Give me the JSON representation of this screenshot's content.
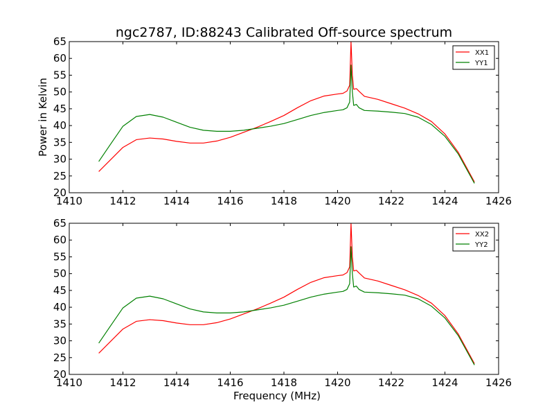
{
  "figure": {
    "title": "ngc2787, ID:88243 Calibrated Off-source spectrum"
  },
  "chart_data": [
    {
      "type": "line",
      "title": "ngc2787, ID:88243 Calibrated Off-source spectrum",
      "xlabel": "",
      "ylabel": "Power in Kelvin",
      "xlim": [
        1410,
        1426
      ],
      "ylim": [
        20,
        65
      ],
      "xticks": [
        1410,
        1412,
        1414,
        1416,
        1418,
        1420,
        1422,
        1424,
        1426
      ],
      "yticks": [
        20,
        25,
        30,
        35,
        40,
        45,
        50,
        55,
        60,
        65
      ],
      "grid": false,
      "legend_position": "top-right",
      "series": [
        {
          "name": "XX1",
          "color": "#ff0000",
          "x": [
            1411.1,
            1411.5,
            1412.0,
            1412.5,
            1413.0,
            1413.5,
            1414.0,
            1414.5,
            1415.0,
            1415.5,
            1416.0,
            1416.5,
            1417.0,
            1417.5,
            1418.0,
            1418.5,
            1419.0,
            1419.5,
            1420.0,
            1420.2,
            1420.35,
            1420.45,
            1420.5,
            1420.55,
            1420.6,
            1420.7,
            1420.8,
            1421.0,
            1421.5,
            1422.0,
            1422.5,
            1423.0,
            1423.5,
            1424.0,
            1424.5,
            1425.1
          ],
          "y": [
            26.3,
            29.5,
            33.5,
            35.8,
            36.3,
            36.0,
            35.3,
            34.8,
            34.8,
            35.4,
            36.5,
            38.0,
            39.5,
            41.2,
            43.0,
            45.3,
            47.4,
            48.8,
            49.4,
            49.6,
            50.3,
            52.0,
            65.0,
            55.0,
            50.8,
            51.0,
            50.2,
            48.7,
            47.8,
            46.5,
            45.2,
            43.5,
            41.2,
            37.5,
            32.0,
            23.2
          ]
        },
        {
          "name": "YY1",
          "color": "#008000",
          "x": [
            1411.1,
            1411.5,
            1412.0,
            1412.5,
            1413.0,
            1413.5,
            1414.0,
            1414.5,
            1415.0,
            1415.5,
            1416.0,
            1416.5,
            1417.0,
            1417.5,
            1418.0,
            1418.5,
            1419.0,
            1419.5,
            1420.0,
            1420.2,
            1420.35,
            1420.45,
            1420.5,
            1420.55,
            1420.6,
            1420.7,
            1420.8,
            1421.0,
            1421.5,
            1422.0,
            1422.5,
            1423.0,
            1423.5,
            1424.0,
            1424.5,
            1425.1
          ],
          "y": [
            29.3,
            34.0,
            39.8,
            42.7,
            43.3,
            42.5,
            41.0,
            39.5,
            38.6,
            38.3,
            38.3,
            38.6,
            39.2,
            39.8,
            40.6,
            41.8,
            43.0,
            43.9,
            44.5,
            44.7,
            45.3,
            47.0,
            58.0,
            50.0,
            46.0,
            46.3,
            45.3,
            44.5,
            44.3,
            44.0,
            43.6,
            42.5,
            40.3,
            36.8,
            31.5,
            22.8
          ]
        }
      ]
    },
    {
      "type": "line",
      "title": "",
      "xlabel": "Frequency (MHz)",
      "ylabel": "",
      "xlim": [
        1410,
        1426
      ],
      "ylim": [
        20,
        65
      ],
      "xticks": [
        1410,
        1412,
        1414,
        1416,
        1418,
        1420,
        1422,
        1424,
        1426
      ],
      "yticks": [
        20,
        25,
        30,
        35,
        40,
        45,
        50,
        55,
        60,
        65
      ],
      "grid": false,
      "legend_position": "top-right",
      "series": [
        {
          "name": "XX2",
          "color": "#ff0000",
          "x": [
            1411.1,
            1411.5,
            1412.0,
            1412.5,
            1413.0,
            1413.5,
            1414.0,
            1414.5,
            1415.0,
            1415.5,
            1416.0,
            1416.5,
            1417.0,
            1417.5,
            1418.0,
            1418.5,
            1419.0,
            1419.5,
            1420.0,
            1420.2,
            1420.35,
            1420.45,
            1420.5,
            1420.55,
            1420.6,
            1420.7,
            1420.8,
            1421.0,
            1421.5,
            1422.0,
            1422.5,
            1423.0,
            1423.5,
            1424.0,
            1424.5,
            1425.1
          ],
          "y": [
            26.3,
            29.5,
            33.5,
            35.8,
            36.3,
            36.0,
            35.3,
            34.8,
            34.8,
            35.4,
            36.5,
            38.0,
            39.5,
            41.2,
            43.0,
            45.3,
            47.4,
            48.8,
            49.4,
            49.6,
            50.3,
            52.0,
            65.0,
            55.0,
            50.8,
            51.0,
            50.2,
            48.7,
            47.8,
            46.5,
            45.2,
            43.5,
            41.2,
            37.5,
            32.0,
            23.2
          ]
        },
        {
          "name": "YY2",
          "color": "#008000",
          "x": [
            1411.1,
            1411.5,
            1412.0,
            1412.5,
            1413.0,
            1413.5,
            1414.0,
            1414.5,
            1415.0,
            1415.5,
            1416.0,
            1416.5,
            1417.0,
            1417.5,
            1418.0,
            1418.5,
            1419.0,
            1419.5,
            1420.0,
            1420.2,
            1420.35,
            1420.45,
            1420.5,
            1420.55,
            1420.6,
            1420.7,
            1420.8,
            1421.0,
            1421.5,
            1422.0,
            1422.5,
            1423.0,
            1423.5,
            1424.0,
            1424.5,
            1425.1
          ],
          "y": [
            29.3,
            34.0,
            39.8,
            42.7,
            43.3,
            42.5,
            41.0,
            39.5,
            38.6,
            38.3,
            38.3,
            38.6,
            39.2,
            39.8,
            40.6,
            41.8,
            43.0,
            43.9,
            44.5,
            44.7,
            45.3,
            47.0,
            58.0,
            50.0,
            46.0,
            46.3,
            45.3,
            44.5,
            44.3,
            44.0,
            43.6,
            42.5,
            40.3,
            36.8,
            31.5,
            22.8
          ]
        }
      ]
    }
  ]
}
